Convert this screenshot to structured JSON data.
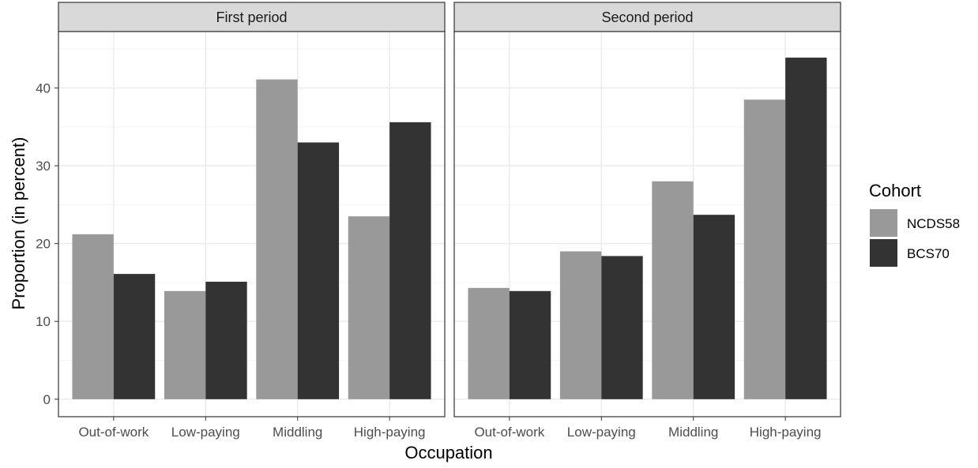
{
  "chart_data": {
    "type": "bar",
    "xlabel": "Occupation",
    "ylabel": "Proportion (in percent)",
    "ylim": [
      0,
      45
    ],
    "y_ticks": [
      0,
      10,
      20,
      30,
      40
    ],
    "grid": true,
    "legend_position": "right",
    "legend": {
      "title": "Cohort"
    },
    "categories": [
      "Out-of-work",
      "Low-paying",
      "Middling",
      "High-paying"
    ],
    "series_meta": [
      {
        "name": "NCDS58",
        "color": "#999999"
      },
      {
        "name": "BCS70",
        "color": "#333333"
      }
    ],
    "facets": [
      {
        "title": "First period",
        "series": [
          {
            "name": "NCDS58",
            "values": [
              21.2,
              13.9,
              41.1,
              23.5
            ]
          },
          {
            "name": "BCS70",
            "values": [
              16.1,
              15.1,
              33.0,
              35.6
            ]
          }
        ]
      },
      {
        "title": "Second period",
        "series": [
          {
            "name": "NCDS58",
            "values": [
              14.3,
              19.0,
              28.0,
              38.5
            ]
          },
          {
            "name": "BCS70",
            "values": [
              13.9,
              18.4,
              23.7,
              43.9
            ]
          }
        ]
      }
    ]
  }
}
